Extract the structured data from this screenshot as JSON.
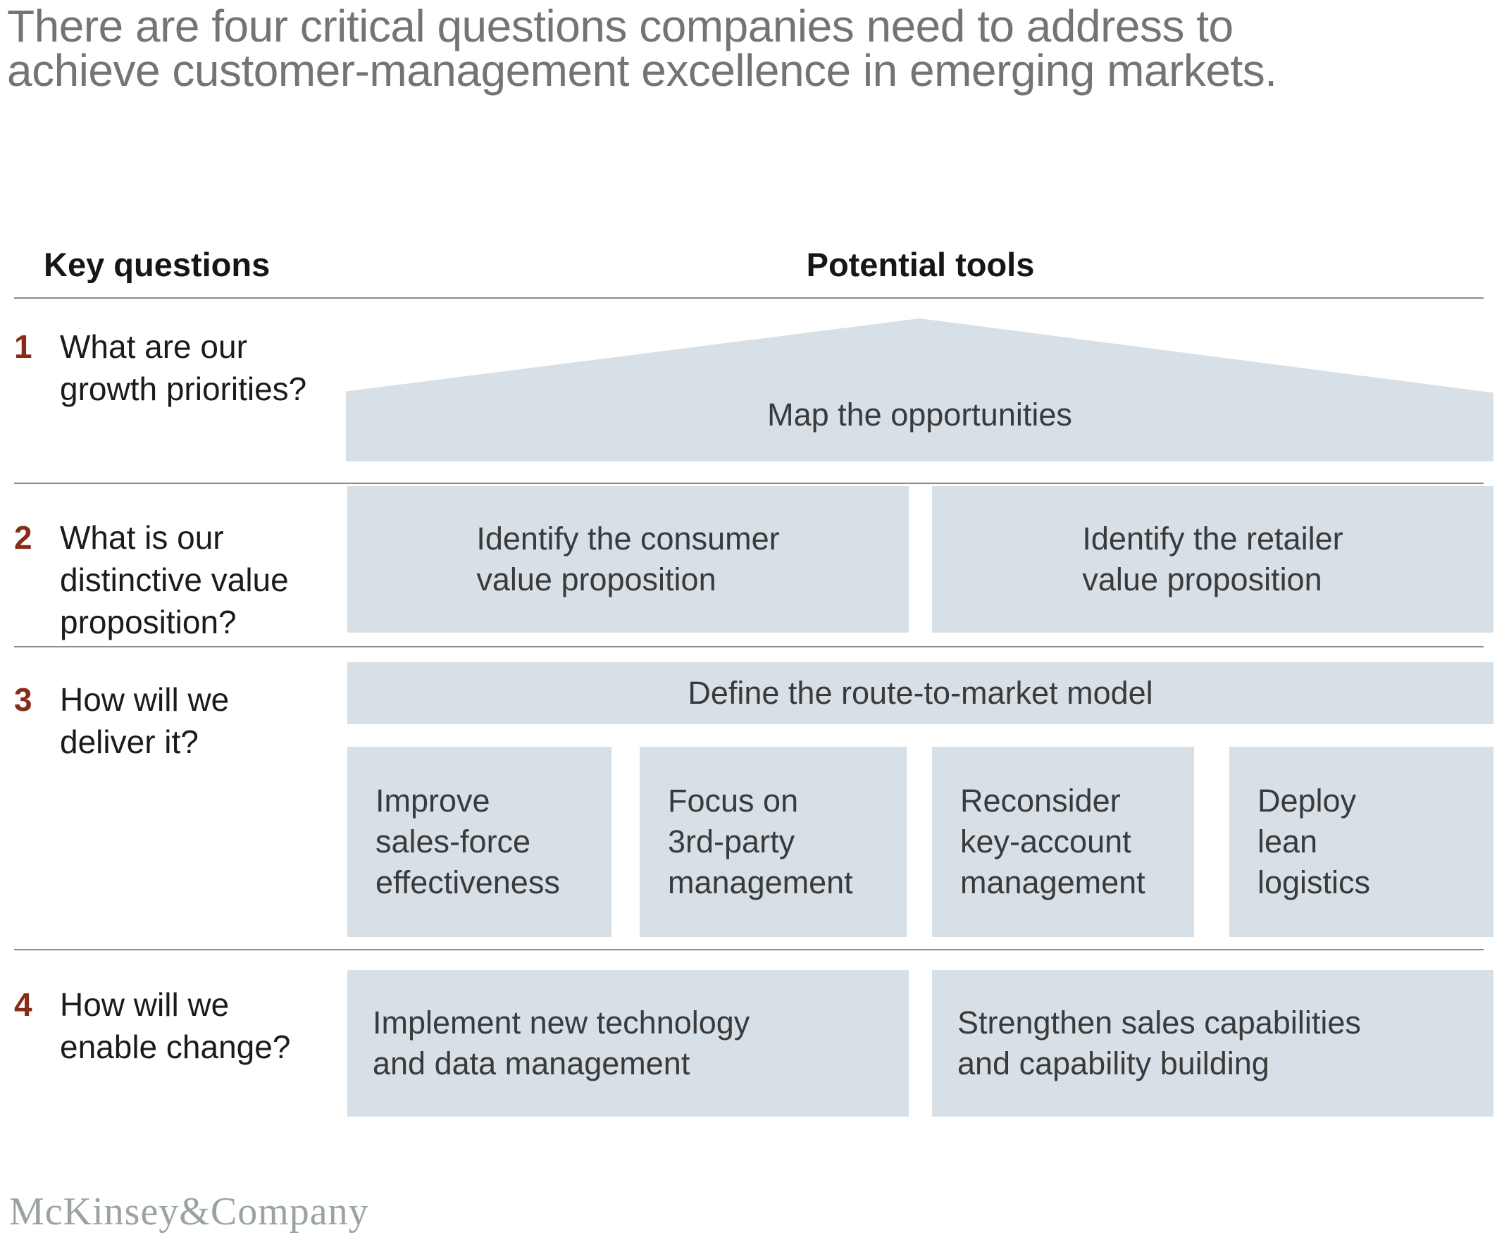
{
  "title": {
    "line1": "There are four critical questions companies need to address to",
    "line2": "achieve customer-management excellence in emerging markets."
  },
  "columns": {
    "key_questions": "Key questions",
    "potential_tools": "Potential tools"
  },
  "rows": [
    {
      "number": "1",
      "question": "What are our\ngrowth priorities?"
    },
    {
      "number": "2",
      "question": "What is our\ndistinctive value\nproposition?"
    },
    {
      "number": "3",
      "question": "How will we\ndeliver it?"
    },
    {
      "number": "4",
      "question": "How will we\nenable change?"
    }
  ],
  "tools": {
    "map": "Map the opportunities",
    "row2": [
      "Identify the consumer\nvalue proposition",
      "Identify the retailer\nvalue proposition"
    ],
    "row3_bar": "Define the route-to-market model",
    "row3_boxes": [
      "Improve\nsales-force\neffectiveness",
      "Focus on\n3rd-party\nmanagement",
      "Reconsider\nkey-account\nmanagement",
      "Deploy\nlean\nlogistics"
    ],
    "row4": [
      "Implement new technology\nand data management",
      "Strengthen sales capabilities\nand capability building"
    ]
  },
  "footer": {
    "logo": "McKinsey&Company"
  },
  "colors": {
    "box_fill": "#d7e0e6",
    "number_red": "#872c19",
    "title_gray": "#747474",
    "divider_gray": "#8c8c8c",
    "box_text": "#3a3a3a",
    "logo_gray": "#9aa49f"
  }
}
